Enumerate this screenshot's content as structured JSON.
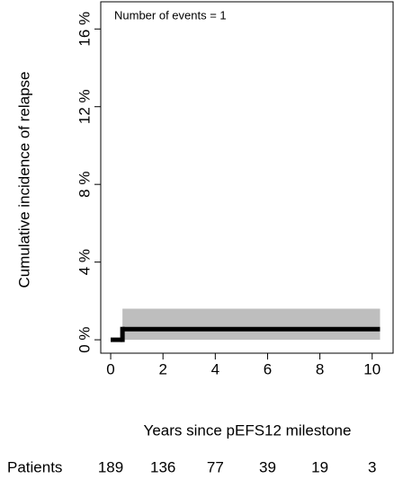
{
  "chart_data": {
    "type": "step",
    "y_label": "Cumulative incidence of relapse",
    "x_label": "Years since pEFS12 milestone",
    "annotation": "Number of events = 1",
    "x": [
      0,
      0.45,
      10.3
    ],
    "values": [
      0,
      0.55,
      0.55
    ],
    "color": "#000000",
    "band": {
      "x": [
        0.45,
        10.3
      ],
      "lower": [
        0,
        0
      ],
      "upper": [
        1.6,
        1.6
      ],
      "color": "#bebebe"
    },
    "xlim": [
      -0.38,
      10.8
    ],
    "ylim": [
      -0.69,
      17.4
    ],
    "xticks": [
      0,
      2,
      4,
      6,
      8,
      10
    ],
    "yticks": [
      {
        "value": 0,
        "label": "0 %"
      },
      {
        "value": 4,
        "label": "4 %"
      },
      {
        "value": 8,
        "label": "8 %"
      },
      {
        "value": 12,
        "label": "12 %"
      },
      {
        "value": 16,
        "label": "16 %"
      }
    ],
    "risk_table": {
      "label": "Patients",
      "counts": [
        189,
        136,
        77,
        39,
        19,
        3
      ]
    }
  }
}
